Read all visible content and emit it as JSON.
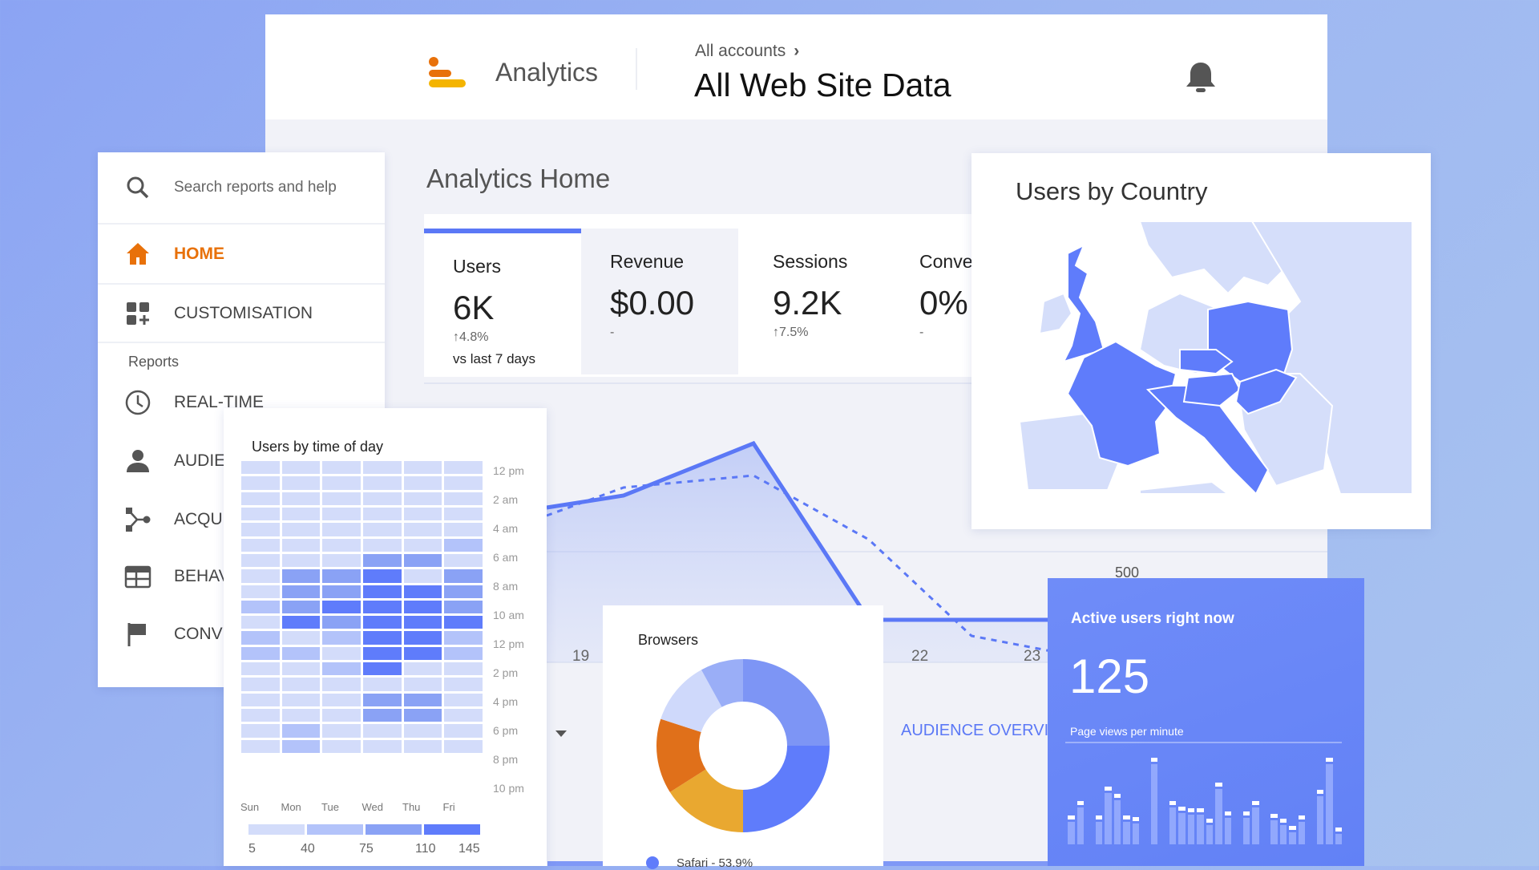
{
  "header": {
    "app_name": "Analytics",
    "breadcrumb": "All accounts",
    "breadcrumb_chevron": "›",
    "property": "All Web Site Data",
    "logo_colors": [
      "#e8710a",
      "#f4b400"
    ]
  },
  "sidebar": {
    "search_placeholder": "Search reports and help",
    "home": "HOME",
    "customisation": "CUSTOMISATION",
    "section_label": "Reports",
    "items": [
      {
        "label": "REAL-TIME",
        "icon": "clock-icon"
      },
      {
        "label": "AUDIE",
        "icon": "person-icon"
      },
      {
        "label": "ACQU",
        "icon": "acquisition-icon"
      },
      {
        "label": "BEHAV",
        "icon": "behaviour-icon"
      },
      {
        "label": "CONV",
        "icon": "flag-icon"
      }
    ],
    "accent": "#e8710a"
  },
  "main": {
    "title": "Analytics Home",
    "tabs": [
      {
        "label": "Users",
        "value": "6K",
        "change": "↑4.8%",
        "compare": "vs last 7 days"
      },
      {
        "label": "Revenue",
        "value": "$0.00",
        "change": "-"
      },
      {
        "label": "Sessions",
        "value": "9.2K",
        "change": "↑7.5%"
      },
      {
        "label": "Conve",
        "value": "0%",
        "change": "-"
      }
    ],
    "line_chart": {
      "x_labels": [
        "19",
        "22",
        "23"
      ],
      "y_label": "500",
      "series": [
        {
          "style": "solid",
          "values": [
            560,
            575,
            640,
            420,
            420,
            420
          ]
        },
        {
          "style": "dashed",
          "values": [
            550,
            585,
            600,
            520,
            400,
            360
          ]
        }
      ],
      "accent": "#5b78f6"
    },
    "audience_link": "AUDIENCE OVERVIE"
  },
  "heatmap": {
    "title": "Users by time of day",
    "days": [
      "Sun",
      "Mon",
      "Tue",
      "Wed",
      "Thu",
      "Fri"
    ],
    "hour_labels": [
      "12 pm",
      "2 am",
      "4 am",
      "6 am",
      "8 am",
      "10 am",
      "12 pm",
      "2 pm",
      "4 pm",
      "6 pm",
      "8 pm",
      "10 pm"
    ],
    "legend": [
      "5",
      "40",
      "75",
      "110",
      "145"
    ],
    "colors": [
      "#d3dcfa",
      "#b3c3fa",
      "#8aa2f5",
      "#5f7cfb"
    ],
    "rows": [
      [
        20,
        20,
        20,
        20,
        20,
        20
      ],
      [
        20,
        20,
        20,
        20,
        20,
        20
      ],
      [
        20,
        20,
        20,
        20,
        20,
        20
      ],
      [
        20,
        20,
        20,
        20,
        20,
        20
      ],
      [
        20,
        20,
        20,
        20,
        20,
        20
      ],
      [
        20,
        20,
        20,
        20,
        20,
        55
      ],
      [
        20,
        20,
        20,
        90,
        90,
        20
      ],
      [
        20,
        90,
        90,
        125,
        20,
        90
      ],
      [
        20,
        90,
        90,
        125,
        125,
        90
      ],
      [
        55,
        90,
        125,
        125,
        125,
        90
      ],
      [
        20,
        125,
        90,
        125,
        125,
        125
      ],
      [
        55,
        20,
        55,
        125,
        125,
        55
      ],
      [
        55,
        55,
        20,
        125,
        125,
        55
      ],
      [
        20,
        20,
        55,
        125,
        20,
        20
      ],
      [
        20,
        20,
        20,
        20,
        20,
        20
      ],
      [
        20,
        20,
        20,
        90,
        90,
        20
      ],
      [
        20,
        20,
        20,
        90,
        90,
        20
      ],
      [
        20,
        55,
        20,
        20,
        20,
        20
      ],
      [
        20,
        55,
        20,
        20,
        20,
        20
      ]
    ]
  },
  "browsers": {
    "title": "Browsers",
    "legend_item": "Safari - 53.9%",
    "segments": [
      {
        "value": 25,
        "color": "#7d95f5"
      },
      {
        "value": 25,
        "color": "#5f7cfb"
      },
      {
        "value": 16,
        "color": "#e9a830"
      },
      {
        "value": 14,
        "color": "#e0701a"
      },
      {
        "value": 12,
        "color": "#cfd9fb"
      },
      {
        "value": 8,
        "color": "#9aaef7"
      }
    ]
  },
  "active": {
    "title": "Active users right now",
    "count": "125",
    "subtitle": "Page views per minute",
    "bars": [
      100,
      150,
      0,
      100,
      200,
      175,
      100,
      95,
      0,
      300,
      0,
      150,
      130,
      125,
      125,
      90,
      215,
      115,
      0,
      115,
      150,
      0,
      105,
      90,
      65,
      100,
      0,
      188,
      300,
      58
    ]
  },
  "country": {
    "title": "Users by Country",
    "highlight": "#5f7cfb",
    "base": "#d5defa"
  }
}
